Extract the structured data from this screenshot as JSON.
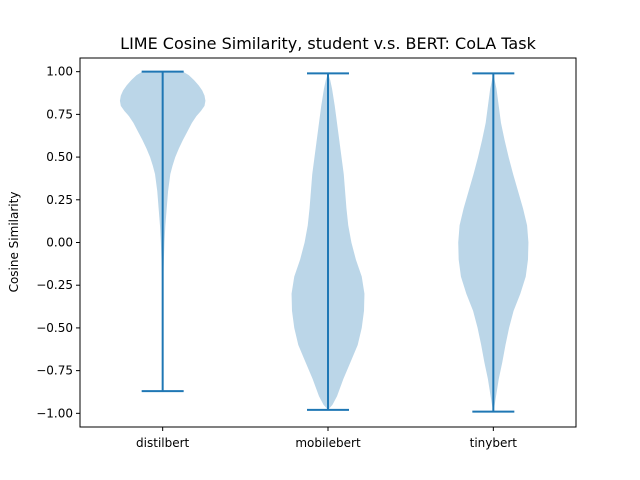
{
  "chart_data": {
    "type": "violin",
    "title": "LIME Cosine Similarity, student v.s. BERT: CoLA Task",
    "xlabel": "",
    "ylabel": "Cosine Similarity",
    "ylim": [
      -1.08,
      1.08
    ],
    "yticks": [
      -1.0,
      -0.75,
      -0.5,
      -0.25,
      0.0,
      0.25,
      0.5,
      0.75,
      1.0
    ],
    "ytick_labels": [
      "−1.00",
      "−0.75",
      "−0.50",
      "−0.25",
      "0.00",
      "0.25",
      "0.50",
      "0.75",
      "1.00"
    ],
    "categories": [
      "distilbert",
      "mobilebert",
      "tinybert"
    ],
    "colors": {
      "body": "#1f77b4",
      "body_opacity": 0.3,
      "line": "#1f77b4"
    },
    "violins": [
      {
        "name": "distilbert",
        "min": -0.87,
        "max": 1.0,
        "density": [
          [
            1.0,
            0.45
          ],
          [
            0.98,
            0.58
          ],
          [
            0.95,
            0.7
          ],
          [
            0.92,
            0.8
          ],
          [
            0.89,
            0.88
          ],
          [
            0.86,
            0.93
          ],
          [
            0.83,
            0.95
          ],
          [
            0.8,
            0.93
          ],
          [
            0.77,
            0.85
          ],
          [
            0.74,
            0.75
          ],
          [
            0.7,
            0.65
          ],
          [
            0.65,
            0.55
          ],
          [
            0.6,
            0.45
          ],
          [
            0.55,
            0.36
          ],
          [
            0.5,
            0.28
          ],
          [
            0.45,
            0.22
          ],
          [
            0.4,
            0.17
          ],
          [
            0.3,
            0.12
          ],
          [
            0.2,
            0.09
          ],
          [
            0.1,
            0.06
          ],
          [
            0.0,
            0.04
          ],
          [
            -0.15,
            0.02
          ],
          [
            -0.3,
            0.01
          ],
          [
            -0.5,
            0.004
          ],
          [
            -0.7,
            0.002
          ],
          [
            -0.87,
            0.0
          ]
        ]
      },
      {
        "name": "mobilebert",
        "min": -0.98,
        "max": 0.99,
        "density": [
          [
            0.99,
            0.0
          ],
          [
            0.95,
            0.05
          ],
          [
            0.9,
            0.09
          ],
          [
            0.8,
            0.15
          ],
          [
            0.7,
            0.2
          ],
          [
            0.6,
            0.25
          ],
          [
            0.5,
            0.3
          ],
          [
            0.4,
            0.35
          ],
          [
            0.3,
            0.38
          ],
          [
            0.2,
            0.41
          ],
          [
            0.1,
            0.45
          ],
          [
            0.0,
            0.52
          ],
          [
            -0.1,
            0.62
          ],
          [
            -0.2,
            0.75
          ],
          [
            -0.3,
            0.81
          ],
          [
            -0.4,
            0.8
          ],
          [
            -0.5,
            0.75
          ],
          [
            -0.6,
            0.66
          ],
          [
            -0.7,
            0.5
          ],
          [
            -0.8,
            0.34
          ],
          [
            -0.9,
            0.2
          ],
          [
            -0.95,
            0.1
          ],
          [
            -0.98,
            0.0
          ]
        ]
      },
      {
        "name": "tinybert",
        "min": -0.99,
        "max": 0.99,
        "density": [
          [
            0.99,
            0.0
          ],
          [
            0.95,
            0.03
          ],
          [
            0.9,
            0.07
          ],
          [
            0.8,
            0.12
          ],
          [
            0.7,
            0.17
          ],
          [
            0.6,
            0.25
          ],
          [
            0.5,
            0.34
          ],
          [
            0.4,
            0.44
          ],
          [
            0.3,
            0.55
          ],
          [
            0.2,
            0.66
          ],
          [
            0.1,
            0.75
          ],
          [
            0.0,
            0.78
          ],
          [
            -0.1,
            0.77
          ],
          [
            -0.2,
            0.72
          ],
          [
            -0.3,
            0.6
          ],
          [
            -0.4,
            0.45
          ],
          [
            -0.5,
            0.35
          ],
          [
            -0.6,
            0.27
          ],
          [
            -0.7,
            0.2
          ],
          [
            -0.8,
            0.12
          ],
          [
            -0.9,
            0.06
          ],
          [
            -0.95,
            0.03
          ],
          [
            -0.99,
            0.0
          ]
        ]
      }
    ]
  }
}
